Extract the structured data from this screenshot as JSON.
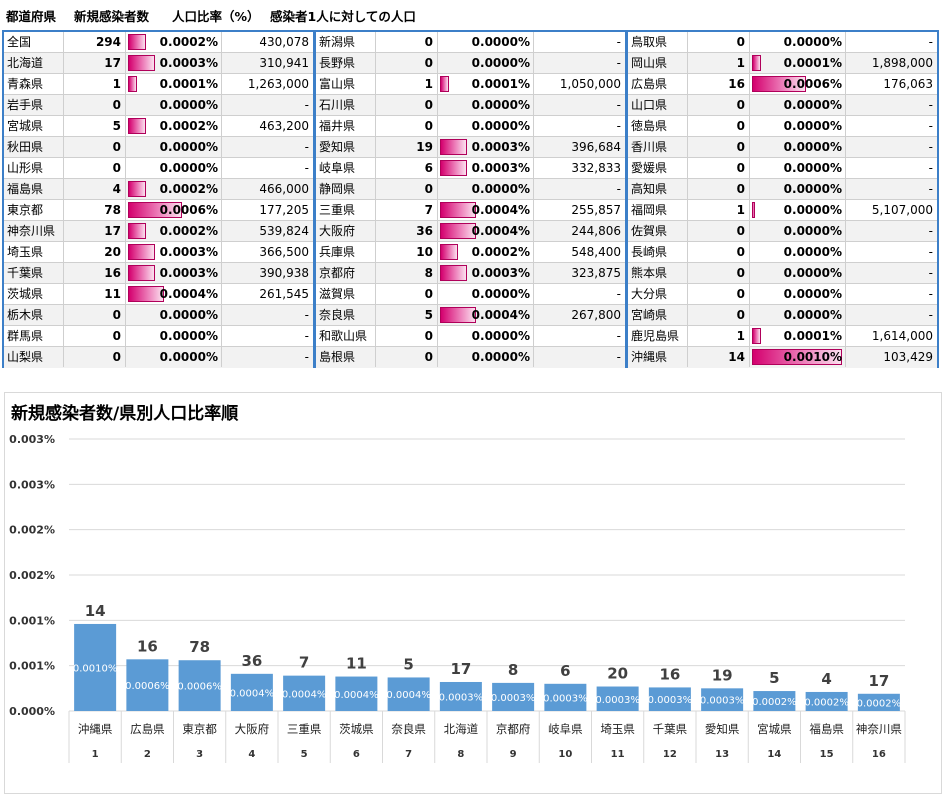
{
  "headers": [
    "都道府県",
    "新規感染者数",
    "人口比率（%）",
    "感染者1人に対しての人口"
  ],
  "table": [
    [
      {
        "name": "全国",
        "count": 294,
        "rate": "0.0002%",
        "rv": 0.0002,
        "pop": "430,078"
      },
      {
        "name": "北海道",
        "count": 17,
        "rate": "0.0003%",
        "rv": 0.0003,
        "pop": "310,941"
      },
      {
        "name": "青森県",
        "count": 1,
        "rate": "0.0001%",
        "rv": 0.0001,
        "pop": "1,263,000"
      },
      {
        "name": "岩手県",
        "count": 0,
        "rate": "0.0000%",
        "rv": 0,
        "pop": "-"
      },
      {
        "name": "宮城県",
        "count": 5,
        "rate": "0.0002%",
        "rv": 0.0002,
        "pop": "463,200"
      },
      {
        "name": "秋田県",
        "count": 0,
        "rate": "0.0000%",
        "rv": 0,
        "pop": "-"
      },
      {
        "name": "山形県",
        "count": 0,
        "rate": "0.0000%",
        "rv": 0,
        "pop": "-"
      },
      {
        "name": "福島県",
        "count": 4,
        "rate": "0.0002%",
        "rv": 0.0002,
        "pop": "466,000"
      },
      {
        "name": "東京都",
        "count": 78,
        "rate": "0.0006%",
        "rv": 0.0006,
        "pop": "177,205"
      },
      {
        "name": "神奈川県",
        "count": 17,
        "rate": "0.0002%",
        "rv": 0.0002,
        "pop": "539,824"
      },
      {
        "name": "埼玉県",
        "count": 20,
        "rate": "0.0003%",
        "rv": 0.0003,
        "pop": "366,500"
      },
      {
        "name": "千葉県",
        "count": 16,
        "rate": "0.0003%",
        "rv": 0.0003,
        "pop": "390,938"
      },
      {
        "name": "茨城県",
        "count": 11,
        "rate": "0.0004%",
        "rv": 0.0004,
        "pop": "261,545"
      },
      {
        "name": "栃木県",
        "count": 0,
        "rate": "0.0000%",
        "rv": 0,
        "pop": "-"
      },
      {
        "name": "群馬県",
        "count": 0,
        "rate": "0.0000%",
        "rv": 0,
        "pop": "-"
      },
      {
        "name": "山梨県",
        "count": 0,
        "rate": "0.0000%",
        "rv": 0,
        "pop": "-"
      }
    ],
    [
      {
        "name": "新潟県",
        "count": 0,
        "rate": "0.0000%",
        "rv": 0,
        "pop": "-"
      },
      {
        "name": "長野県",
        "count": 0,
        "rate": "0.0000%",
        "rv": 0,
        "pop": "-"
      },
      {
        "name": "富山県",
        "count": 1,
        "rate": "0.0001%",
        "rv": 0.0001,
        "pop": "1,050,000"
      },
      {
        "name": "石川県",
        "count": 0,
        "rate": "0.0000%",
        "rv": 0,
        "pop": "-"
      },
      {
        "name": "福井県",
        "count": 0,
        "rate": "0.0000%",
        "rv": 0,
        "pop": "-"
      },
      {
        "name": "愛知県",
        "count": 19,
        "rate": "0.0003%",
        "rv": 0.0003,
        "pop": "396,684"
      },
      {
        "name": "岐阜県",
        "count": 6,
        "rate": "0.0003%",
        "rv": 0.0003,
        "pop": "332,833"
      },
      {
        "name": "静岡県",
        "count": 0,
        "rate": "0.0000%",
        "rv": 0,
        "pop": "-"
      },
      {
        "name": "三重県",
        "count": 7,
        "rate": "0.0004%",
        "rv": 0.0004,
        "pop": "255,857"
      },
      {
        "name": "大阪府",
        "count": 36,
        "rate": "0.0004%",
        "rv": 0.0004,
        "pop": "244,806"
      },
      {
        "name": "兵庫県",
        "count": 10,
        "rate": "0.0002%",
        "rv": 0.0002,
        "pop": "548,400"
      },
      {
        "name": "京都府",
        "count": 8,
        "rate": "0.0003%",
        "rv": 0.0003,
        "pop": "323,875"
      },
      {
        "name": "滋賀県",
        "count": 0,
        "rate": "0.0000%",
        "rv": 0,
        "pop": "-"
      },
      {
        "name": "奈良県",
        "count": 5,
        "rate": "0.0004%",
        "rv": 0.0004,
        "pop": "267,800"
      },
      {
        "name": "和歌山県",
        "count": 0,
        "rate": "0.0000%",
        "rv": 0,
        "pop": "-"
      },
      {
        "name": "島根県",
        "count": 0,
        "rate": "0.0000%",
        "rv": 0,
        "pop": "-"
      }
    ],
    [
      {
        "name": "鳥取県",
        "count": 0,
        "rate": "0.0000%",
        "rv": 0,
        "pop": "-"
      },
      {
        "name": "岡山県",
        "count": 1,
        "rate": "0.0001%",
        "rv": 0.0001,
        "pop": "1,898,000"
      },
      {
        "name": "広島県",
        "count": 16,
        "rate": "0.0006%",
        "rv": 0.0006,
        "pop": "176,063"
      },
      {
        "name": "山口県",
        "count": 0,
        "rate": "0.0000%",
        "rv": 0,
        "pop": "-"
      },
      {
        "name": "徳島県",
        "count": 0,
        "rate": "0.0000%",
        "rv": 0,
        "pop": "-"
      },
      {
        "name": "香川県",
        "count": 0,
        "rate": "0.0000%",
        "rv": 0,
        "pop": "-"
      },
      {
        "name": "愛媛県",
        "count": 0,
        "rate": "0.0000%",
        "rv": 0,
        "pop": "-"
      },
      {
        "name": "高知県",
        "count": 0,
        "rate": "0.0000%",
        "rv": 0,
        "pop": "-"
      },
      {
        "name": "福岡県",
        "count": 1,
        "rate": "0.0000%",
        "rv": 2e-05,
        "pop": "5,107,000"
      },
      {
        "name": "佐賀県",
        "count": 0,
        "rate": "0.0000%",
        "rv": 0,
        "pop": "-"
      },
      {
        "name": "長崎県",
        "count": 0,
        "rate": "0.0000%",
        "rv": 0,
        "pop": "-"
      },
      {
        "name": "熊本県",
        "count": 0,
        "rate": "0.0000%",
        "rv": 0,
        "pop": "-"
      },
      {
        "name": "大分県",
        "count": 0,
        "rate": "0.0000%",
        "rv": 0,
        "pop": "-"
      },
      {
        "name": "宮崎県",
        "count": 0,
        "rate": "0.0000%",
        "rv": 0,
        "pop": "-"
      },
      {
        "name": "鹿児島県",
        "count": 1,
        "rate": "0.0001%",
        "rv": 0.0001,
        "pop": "1,614,000"
      },
      {
        "name": "沖縄県",
        "count": 14,
        "rate": "0.0010%",
        "rv": 0.001,
        "pop": "103,429"
      }
    ]
  ],
  "colors": {
    "table_bar": "#d4006e",
    "border": "#3c7fc8",
    "chart_bar": "#5b9bd5"
  },
  "chart_data": {
    "type": "bar",
    "title": "新規感染者数/県別人口比率順",
    "categories": [
      "沖縄県",
      "広島県",
      "東京都",
      "大阪府",
      "三重県",
      "茨城県",
      "奈良県",
      "北海道",
      "京都府",
      "岐阜県",
      "埼玉県",
      "千葉県",
      "愛知県",
      "宮城県",
      "福島県",
      "神奈川県"
    ],
    "ranks": [
      "1",
      "2",
      "3",
      "4",
      "5",
      "6",
      "7",
      "8",
      "9",
      "10",
      "11",
      "12",
      "13",
      "14",
      "15",
      "16"
    ],
    "values": [
      0.00096,
      0.00057,
      0.00056,
      0.00041,
      0.00039,
      0.00038,
      0.00037,
      0.00032,
      0.00031,
      0.0003,
      0.00027,
      0.00026,
      0.00025,
      0.00022,
      0.00021,
      0.00019
    ],
    "value_labels": [
      "0.0010%",
      "0.0006%",
      "0.0006%",
      "0.0004%",
      "0.0004%",
      "0.0004%",
      "0.0004%",
      "0.0003%",
      "0.0003%",
      "0.0003%",
      "0.0003%",
      "0.0003%",
      "0.0003%",
      "0.0002%",
      "0.0002%",
      "0.0002%"
    ],
    "counts": [
      14,
      16,
      78,
      36,
      7,
      11,
      5,
      17,
      8,
      6,
      20,
      16,
      19,
      5,
      4,
      17
    ],
    "yticks": [
      "0.000%",
      "0.001%",
      "0.001%",
      "0.002%",
      "0.002%",
      "0.003%",
      "0.003%"
    ],
    "ylim": [
      0,
      0.003
    ],
    "grid": true
  }
}
